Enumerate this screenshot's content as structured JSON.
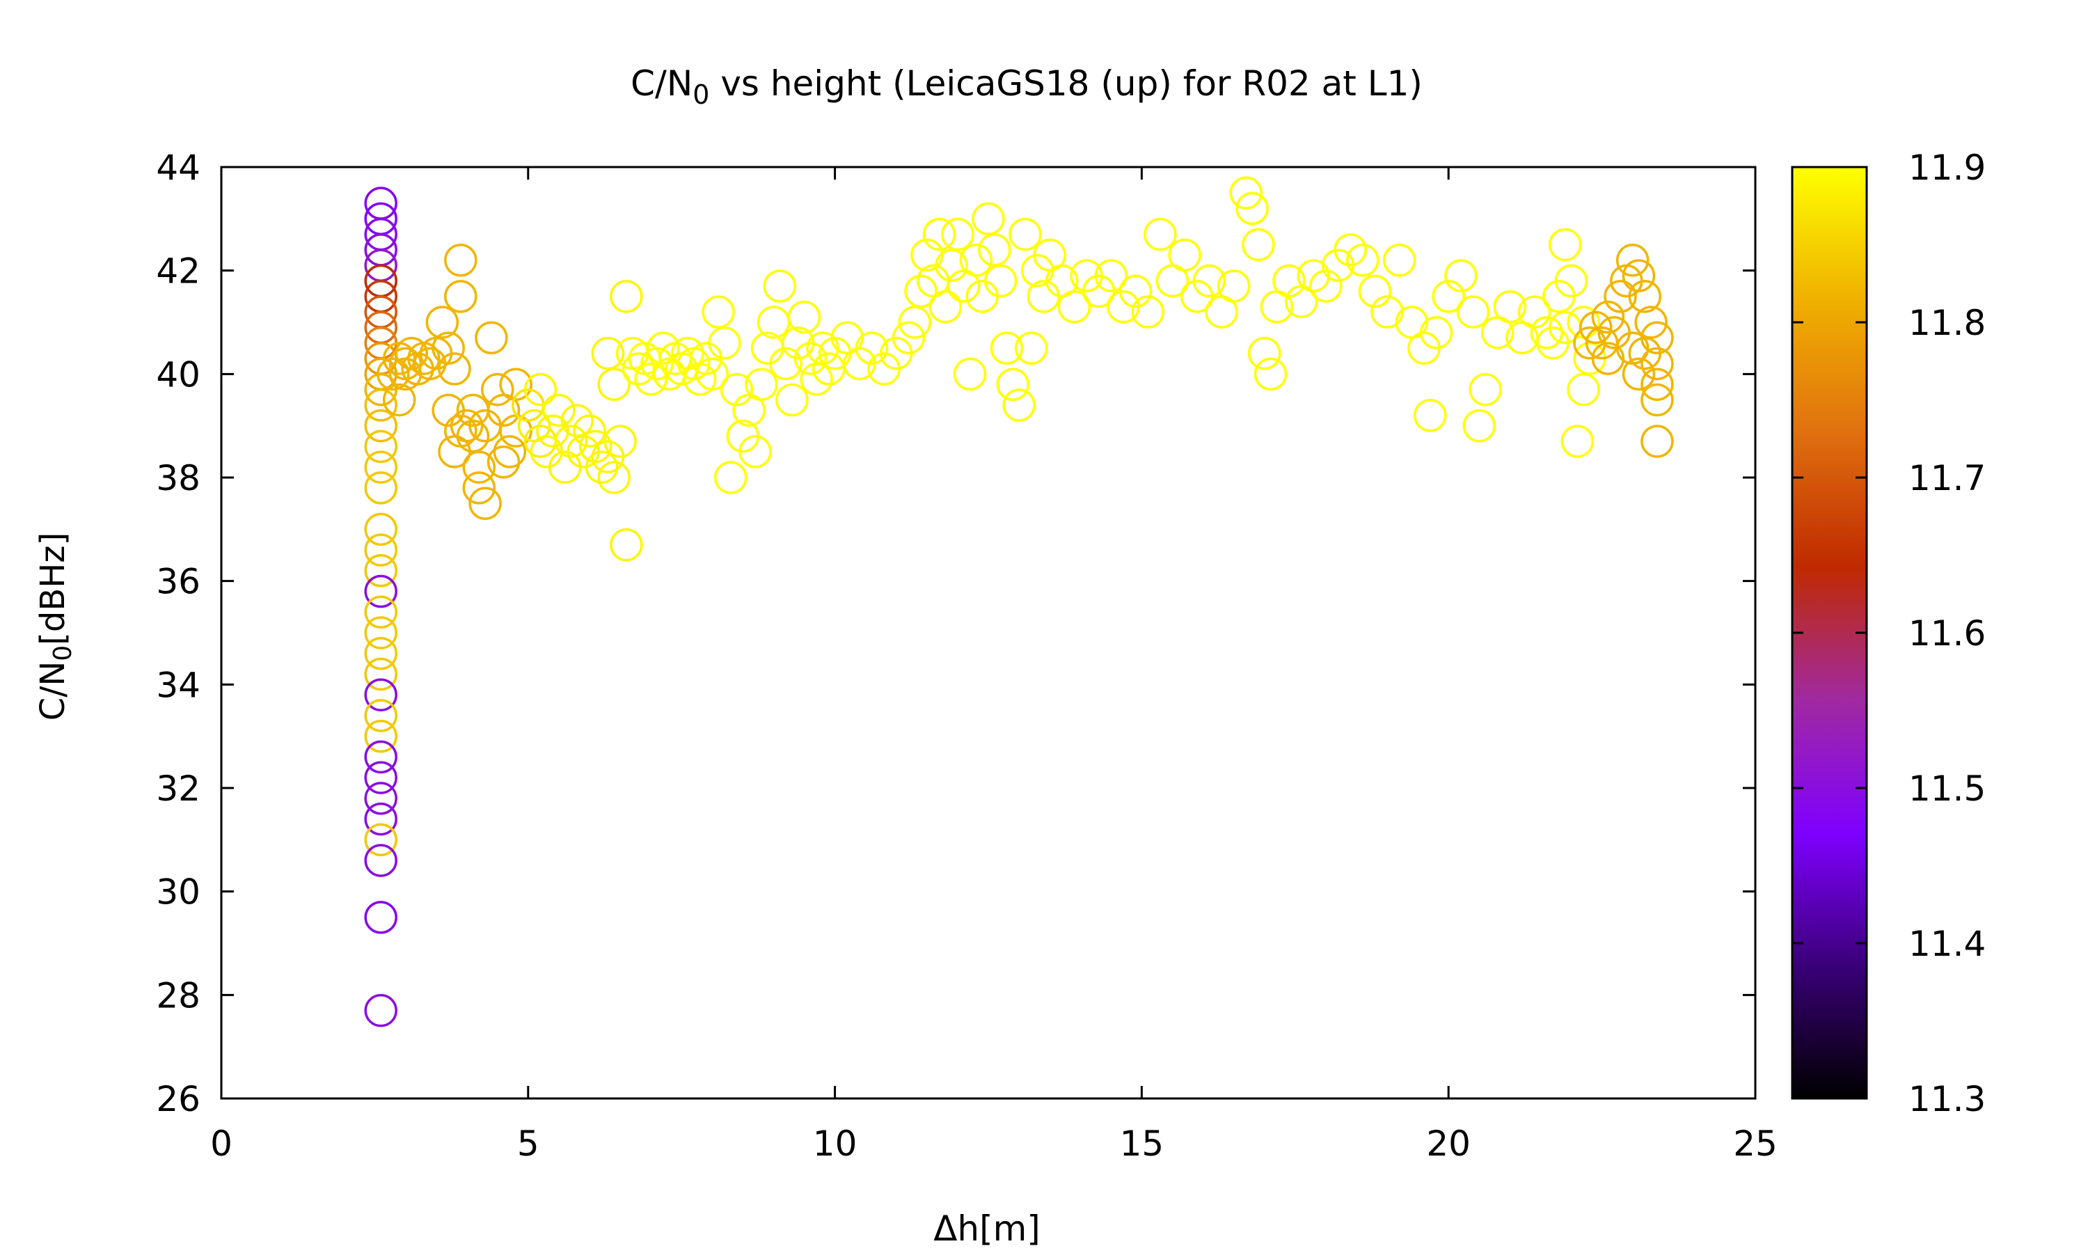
{
  "chart_data": {
    "type": "scatter",
    "title": {
      "main": "C/N",
      "sub": "0",
      "rest": " vs height (LeicaGS18 (up) for R02 at L1)"
    },
    "xlabel": "Δh[m]",
    "ylabel": {
      "main": "C/N",
      "sub": "0",
      "rest": "[dBHz]"
    },
    "xlim": [
      0,
      25
    ],
    "ylim": [
      26,
      44
    ],
    "xticks": [
      0,
      5,
      10,
      15,
      20,
      25
    ],
    "yticks": [
      26,
      28,
      30,
      32,
      34,
      36,
      38,
      40,
      42,
      44
    ],
    "grid": false,
    "legend": "none",
    "marker": "open-circle",
    "colorbar": {
      "label": "",
      "range": [
        11.3,
        11.9
      ],
      "ticks": [
        11.3,
        11.4,
        11.5,
        11.6,
        11.7,
        11.8,
        11.9
      ],
      "palette": [
        "#000000",
        "#3a0078",
        "#7f00ff",
        "#a02aa0",
        "#c02a00",
        "#e07010",
        "#f0b000",
        "#ffff00"
      ]
    },
    "points": [
      [
        2.6,
        43.3,
        11.49
      ],
      [
        2.6,
        43.0,
        11.48
      ],
      [
        2.6,
        42.7,
        11.5
      ],
      [
        2.6,
        42.4,
        11.5
      ],
      [
        2.6,
        42.1,
        11.52
      ],
      [
        2.6,
        41.8,
        11.64
      ],
      [
        2.6,
        41.5,
        11.66
      ],
      [
        2.6,
        41.2,
        11.7
      ],
      [
        2.6,
        40.9,
        11.72
      ],
      [
        2.6,
        40.6,
        11.75
      ],
      [
        2.6,
        40.3,
        11.78
      ],
      [
        2.6,
        40.0,
        11.8
      ],
      [
        2.6,
        39.7,
        11.82
      ],
      [
        2.6,
        39.4,
        11.83
      ],
      [
        2.6,
        39.0,
        11.83
      ],
      [
        2.6,
        38.6,
        11.84
      ],
      [
        2.6,
        38.2,
        11.84
      ],
      [
        2.6,
        37.8,
        11.84
      ],
      [
        2.6,
        37.0,
        11.84
      ],
      [
        2.6,
        36.6,
        11.84
      ],
      [
        2.6,
        36.2,
        11.84
      ],
      [
        2.6,
        35.8,
        11.5
      ],
      [
        2.6,
        35.4,
        11.84
      ],
      [
        2.6,
        35.0,
        11.84
      ],
      [
        2.6,
        34.6,
        11.84
      ],
      [
        2.6,
        34.2,
        11.84
      ],
      [
        2.6,
        33.8,
        11.5
      ],
      [
        2.6,
        33.4,
        11.84
      ],
      [
        2.6,
        33.0,
        11.84
      ],
      [
        2.6,
        32.6,
        11.5
      ],
      [
        2.6,
        32.2,
        11.5
      ],
      [
        2.6,
        31.8,
        11.5
      ],
      [
        2.6,
        31.4,
        11.5
      ],
      [
        2.6,
        31.0,
        11.84
      ],
      [
        2.6,
        30.6,
        11.5
      ],
      [
        2.6,
        29.5,
        11.49
      ],
      [
        2.6,
        27.7,
        11.5
      ],
      [
        2.8,
        40.0,
        11.82
      ],
      [
        2.9,
        40.3,
        11.82
      ],
      [
        3.0,
        40.2,
        11.82
      ],
      [
        3.1,
        40.4,
        11.82
      ],
      [
        3.2,
        40.1,
        11.82
      ],
      [
        3.3,
        40.3,
        11.82
      ],
      [
        3.4,
        40.2,
        11.82
      ],
      [
        3.5,
        40.4,
        11.82
      ],
      [
        3.6,
        41.0,
        11.82
      ],
      [
        3.7,
        40.5,
        11.82
      ],
      [
        3.8,
        40.1,
        11.82
      ],
      [
        3.7,
        39.3,
        11.82
      ],
      [
        3.8,
        38.5,
        11.82
      ],
      [
        3.9,
        41.5,
        11.82
      ],
      [
        3.9,
        42.2,
        11.82
      ],
      [
        4.0,
        39.0,
        11.82
      ],
      [
        4.1,
        38.8,
        11.82
      ],
      [
        4.2,
        38.2,
        11.82
      ],
      [
        4.2,
        37.8,
        11.82
      ],
      [
        4.3,
        37.5,
        11.82
      ],
      [
        4.4,
        40.7,
        11.82
      ],
      [
        4.5,
        39.7,
        11.82
      ],
      [
        4.6,
        39.3,
        11.82
      ],
      [
        4.7,
        38.5,
        11.82
      ],
      [
        4.8,
        39.8,
        11.82
      ],
      [
        4.8,
        38.9,
        11.82
      ],
      [
        3.9,
        38.9,
        11.82
      ],
      [
        4.1,
        39.3,
        11.82
      ],
      [
        4.3,
        39.0,
        11.82
      ],
      [
        4.6,
        38.3,
        11.82
      ],
      [
        2.9,
        39.5,
        11.82
      ],
      [
        3.0,
        40.0,
        11.82
      ],
      [
        5.0,
        39.4,
        11.87
      ],
      [
        5.1,
        39.0,
        11.88
      ],
      [
        5.2,
        38.7,
        11.88
      ],
      [
        5.3,
        38.5,
        11.89
      ],
      [
        5.4,
        38.9,
        11.89
      ],
      [
        5.5,
        39.3,
        11.89
      ],
      [
        5.6,
        38.2,
        11.89
      ],
      [
        5.7,
        38.7,
        11.89
      ],
      [
        5.8,
        39.1,
        11.89
      ],
      [
        5.9,
        38.5,
        11.89
      ],
      [
        6.0,
        38.9,
        11.89
      ],
      [
        6.1,
        38.6,
        11.89
      ],
      [
        6.2,
        38.2,
        11.89
      ],
      [
        6.3,
        38.4,
        11.89
      ],
      [
        6.4,
        38.0,
        11.89
      ],
      [
        6.5,
        38.7,
        11.89
      ],
      [
        6.6,
        36.7,
        11.89
      ],
      [
        6.6,
        41.5,
        11.89
      ],
      [
        6.4,
        39.8,
        11.89
      ],
      [
        6.3,
        40.4,
        11.89
      ],
      [
        5.2,
        39.7,
        11.89
      ],
      [
        6.7,
        40.4,
        11.9
      ],
      [
        6.8,
        40.1,
        11.9
      ],
      [
        6.9,
        40.3,
        11.9
      ],
      [
        7.0,
        39.9,
        11.9
      ],
      [
        7.1,
        40.2,
        11.9
      ],
      [
        7.2,
        40.5,
        11.9
      ],
      [
        7.3,
        40.0,
        11.9
      ],
      [
        7.4,
        40.3,
        11.9
      ],
      [
        7.5,
        40.1,
        11.9
      ],
      [
        7.6,
        40.4,
        11.9
      ],
      [
        7.7,
        40.2,
        11.9
      ],
      [
        7.8,
        39.9,
        11.9
      ],
      [
        7.9,
        40.3,
        11.9
      ],
      [
        8.0,
        40.0,
        11.9
      ],
      [
        8.1,
        41.2,
        11.9
      ],
      [
        8.2,
        40.6,
        11.9
      ],
      [
        8.3,
        38.0,
        11.9
      ],
      [
        8.4,
        39.7,
        11.9
      ],
      [
        8.5,
        38.8,
        11.9
      ],
      [
        8.6,
        39.3,
        11.9
      ],
      [
        8.7,
        38.5,
        11.9
      ],
      [
        8.8,
        39.8,
        11.9
      ],
      [
        8.9,
        40.5,
        11.9
      ],
      [
        9.0,
        41.0,
        11.9
      ],
      [
        9.1,
        41.7,
        11.9
      ],
      [
        9.2,
        40.2,
        11.9
      ],
      [
        9.3,
        39.5,
        11.9
      ],
      [
        9.4,
        40.6,
        11.9
      ],
      [
        9.5,
        41.1,
        11.9
      ],
      [
        9.6,
        40.3,
        11.9
      ],
      [
        9.7,
        39.9,
        11.9
      ],
      [
        9.8,
        40.5,
        11.9
      ],
      [
        9.9,
        40.1,
        11.9
      ],
      [
        10.0,
        40.4,
        11.9
      ],
      [
        10.2,
        40.7,
        11.9
      ],
      [
        10.4,
        40.2,
        11.9
      ],
      [
        10.6,
        40.5,
        11.9
      ],
      [
        10.8,
        40.1,
        11.9
      ],
      [
        11.0,
        40.4,
        11.9
      ],
      [
        11.2,
        40.7,
        11.9
      ],
      [
        11.3,
        41.0,
        11.9
      ],
      [
        11.4,
        41.6,
        11.9
      ],
      [
        11.5,
        42.3,
        11.9
      ],
      [
        11.6,
        41.8,
        11.9
      ],
      [
        11.7,
        42.7,
        11.9
      ],
      [
        11.8,
        41.3,
        11.9
      ],
      [
        11.9,
        42.1,
        11.9
      ],
      [
        12.0,
        42.7,
        11.9
      ],
      [
        12.1,
        41.7,
        11.9
      ],
      [
        12.2,
        40.0,
        11.9
      ],
      [
        12.3,
        42.2,
        11.9
      ],
      [
        12.4,
        41.5,
        11.9
      ],
      [
        12.5,
        43.0,
        11.9
      ],
      [
        12.6,
        42.4,
        11.9
      ],
      [
        12.7,
        41.8,
        11.9
      ],
      [
        12.8,
        40.5,
        11.9
      ],
      [
        12.9,
        39.8,
        11.9
      ],
      [
        13.0,
        39.4,
        11.9
      ],
      [
        13.1,
        42.7,
        11.9
      ],
      [
        13.2,
        40.5,
        11.9
      ],
      [
        13.3,
        42.0,
        11.9
      ],
      [
        13.4,
        41.5,
        11.9
      ],
      [
        13.5,
        42.3,
        11.9
      ],
      [
        13.7,
        41.8,
        11.9
      ],
      [
        13.9,
        41.3,
        11.9
      ],
      [
        14.1,
        41.9,
        11.9
      ],
      [
        14.3,
        41.6,
        11.9
      ],
      [
        14.5,
        41.9,
        11.9
      ],
      [
        14.7,
        41.3,
        11.9
      ],
      [
        14.9,
        41.6,
        11.9
      ],
      [
        15.1,
        41.2,
        11.9
      ],
      [
        15.3,
        42.7,
        11.9
      ],
      [
        15.5,
        41.8,
        11.9
      ],
      [
        15.7,
        42.3,
        11.9
      ],
      [
        15.9,
        41.5,
        11.9
      ],
      [
        16.1,
        41.8,
        11.9
      ],
      [
        16.3,
        41.2,
        11.9
      ],
      [
        16.5,
        41.7,
        11.9
      ],
      [
        16.7,
        43.5,
        11.9
      ],
      [
        16.8,
        43.2,
        11.9
      ],
      [
        16.9,
        42.5,
        11.9
      ],
      [
        17.0,
        40.4,
        11.9
      ],
      [
        17.1,
        40.0,
        11.9
      ],
      [
        17.2,
        41.3,
        11.9
      ],
      [
        17.4,
        41.8,
        11.9
      ],
      [
        17.6,
        41.4,
        11.9
      ],
      [
        17.8,
        41.9,
        11.9
      ],
      [
        18.0,
        41.7,
        11.9
      ],
      [
        18.2,
        42.1,
        11.9
      ],
      [
        18.4,
        42.4,
        11.9
      ],
      [
        18.6,
        42.2,
        11.9
      ],
      [
        18.8,
        41.6,
        11.9
      ],
      [
        19.0,
        41.2,
        11.9
      ],
      [
        19.2,
        42.2,
        11.9
      ],
      [
        19.4,
        41.0,
        11.9
      ],
      [
        19.6,
        40.5,
        11.9
      ],
      [
        19.7,
        39.2,
        11.9
      ],
      [
        19.8,
        40.8,
        11.9
      ],
      [
        20.0,
        41.5,
        11.9
      ],
      [
        20.2,
        41.9,
        11.9
      ],
      [
        20.4,
        41.2,
        11.9
      ],
      [
        20.5,
        39.0,
        11.9
      ],
      [
        20.6,
        39.7,
        11.9
      ],
      [
        20.8,
        40.8,
        11.9
      ],
      [
        21.0,
        41.3,
        11.9
      ],
      [
        21.2,
        40.7,
        11.9
      ],
      [
        21.4,
        41.2,
        11.9
      ],
      [
        21.6,
        40.8,
        11.9
      ],
      [
        21.8,
        41.5,
        11.9
      ],
      [
        21.9,
        42.5,
        11.9
      ],
      [
        22.0,
        41.8,
        11.9
      ],
      [
        22.1,
        38.7,
        11.9
      ],
      [
        22.2,
        39.7,
        11.9
      ],
      [
        22.3,
        40.3,
        11.9
      ],
      [
        22.2,
        41.0,
        11.9
      ],
      [
        21.7,
        40.6,
        11.9
      ],
      [
        21.9,
        40.9,
        11.9
      ],
      [
        22.4,
        40.9,
        11.82
      ],
      [
        22.5,
        40.6,
        11.82
      ],
      [
        22.6,
        41.1,
        11.82
      ],
      [
        22.7,
        40.8,
        11.82
      ],
      [
        22.8,
        41.5,
        11.82
      ],
      [
        22.9,
        41.8,
        11.82
      ],
      [
        23.0,
        42.2,
        11.82
      ],
      [
        23.0,
        40.5,
        11.82
      ],
      [
        23.1,
        41.9,
        11.82
      ],
      [
        23.2,
        41.5,
        11.82
      ],
      [
        23.3,
        41.0,
        11.82
      ],
      [
        23.4,
        40.7,
        11.82
      ],
      [
        23.4,
        40.2,
        11.82
      ],
      [
        23.4,
        39.8,
        11.82
      ],
      [
        23.4,
        39.5,
        11.82
      ],
      [
        23.4,
        38.7,
        11.82
      ],
      [
        23.2,
        40.4,
        11.82
      ],
      [
        22.6,
        40.3,
        11.82
      ],
      [
        23.1,
        40.0,
        11.82
      ],
      [
        22.3,
        40.6,
        11.82
      ]
    ]
  }
}
